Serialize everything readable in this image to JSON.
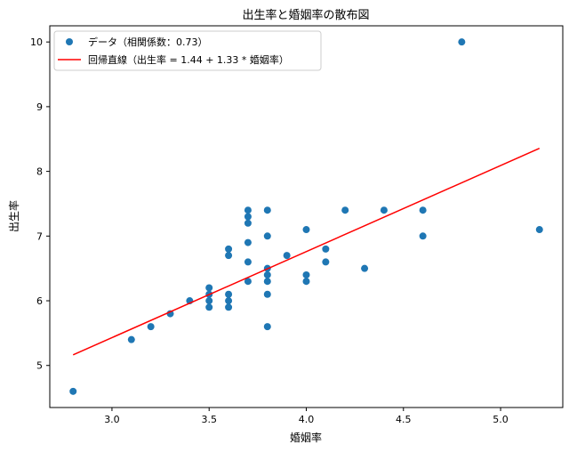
{
  "chart_data": {
    "type": "scatter",
    "title": "出生率と婚姻率の散布図",
    "xlabel": "婚姻率",
    "ylabel": "出生率",
    "xlim": [
      2.68,
      5.32
    ],
    "ylim": [
      4.35,
      10.25
    ],
    "xticks": [
      3.0,
      3.5,
      4.0,
      4.5,
      5.0
    ],
    "xtick_labels": [
      "3.0",
      "3.5",
      "4.0",
      "4.5",
      "5.0"
    ],
    "yticks": [
      5,
      6,
      7,
      8,
      9,
      10
    ],
    "ytick_labels": [
      "5",
      "6",
      "7",
      "8",
      "9",
      "10"
    ],
    "grid": false,
    "legend_position": "top-left",
    "series": [
      {
        "name": "データ（相関係数：0.73）",
        "kind": "scatter",
        "color": "#1f77b4",
        "points": [
          [
            2.8,
            4.6
          ],
          [
            3.1,
            5.4
          ],
          [
            3.2,
            5.6
          ],
          [
            3.3,
            5.8
          ],
          [
            3.4,
            6.0
          ],
          [
            3.5,
            5.9
          ],
          [
            3.5,
            6.0
          ],
          [
            3.5,
            6.1
          ],
          [
            3.5,
            6.2
          ],
          [
            3.6,
            5.9
          ],
          [
            3.6,
            6.0
          ],
          [
            3.6,
            6.1
          ],
          [
            3.6,
            6.7
          ],
          [
            3.6,
            6.8
          ],
          [
            3.7,
            6.3
          ],
          [
            3.7,
            6.6
          ],
          [
            3.7,
            6.9
          ],
          [
            3.7,
            7.2
          ],
          [
            3.7,
            7.3
          ],
          [
            3.7,
            7.4
          ],
          [
            3.8,
            5.6
          ],
          [
            3.8,
            6.1
          ],
          [
            3.8,
            6.3
          ],
          [
            3.8,
            6.4
          ],
          [
            3.8,
            6.5
          ],
          [
            3.8,
            7.0
          ],
          [
            3.8,
            7.4
          ],
          [
            3.9,
            6.7
          ],
          [
            4.0,
            6.3
          ],
          [
            4.0,
            6.4
          ],
          [
            4.0,
            7.1
          ],
          [
            4.1,
            6.6
          ],
          [
            4.1,
            6.8
          ],
          [
            4.2,
            7.4
          ],
          [
            4.3,
            6.5
          ],
          [
            4.4,
            7.4
          ],
          [
            4.6,
            7.0
          ],
          [
            4.6,
            7.4
          ],
          [
            4.8,
            10.0
          ],
          [
            5.2,
            7.1
          ]
        ]
      },
      {
        "name": "回帰直線（出生率 = 1.44 + 1.33 * 婚姻率）",
        "kind": "line",
        "color": "#ff0000",
        "intercept": 1.44,
        "slope": 1.33,
        "x_range": [
          2.8,
          5.2
        ]
      }
    ]
  }
}
